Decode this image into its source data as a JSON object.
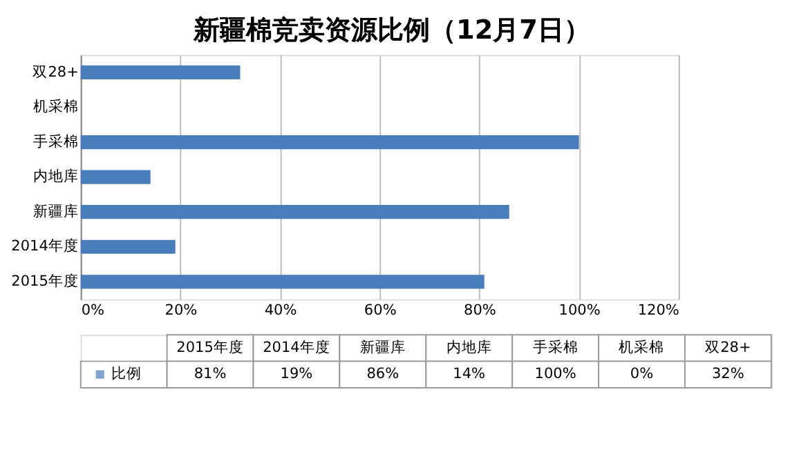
{
  "chart_data": {
    "type": "bar",
    "orientation": "horizontal",
    "title": "新疆棉竞卖资源比例（12月7日）",
    "categories": [
      "双28+",
      "机采棉",
      "手采棉",
      "内地库",
      "新疆库",
      "2014年度",
      "2015年度"
    ],
    "series": [
      {
        "name": "比例",
        "color": "#4a7ebb",
        "values": [
          32,
          0,
          100,
          14,
          86,
          19,
          81
        ]
      }
    ],
    "annotations": [
      "81%",
      "19%",
      "86%",
      "14%",
      "100%",
      "0%",
      "32%"
    ],
    "xlim": [
      0,
      120
    ],
    "xticks": [
      {
        "value": 0,
        "label": "0%"
      },
      {
        "value": 20,
        "label": "20%"
      },
      {
        "value": 40,
        "label": "40%"
      },
      {
        "value": 60,
        "label": "60%"
      },
      {
        "value": 80,
        "label": "80%"
      },
      {
        "value": 100,
        "label": "100%"
      },
      {
        "value": 120,
        "label": "120%"
      }
    ],
    "grid": "x",
    "legend": "bottom"
  }
}
